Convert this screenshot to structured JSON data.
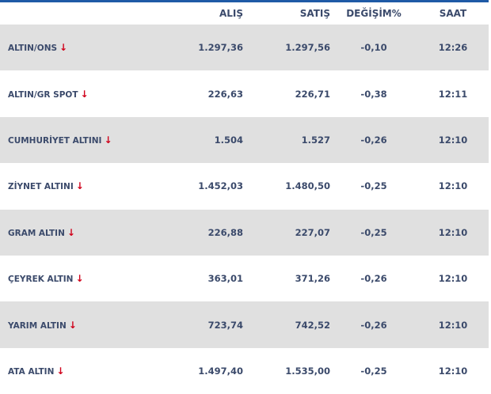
{
  "header": {
    "name": "",
    "buy": "ALIŞ",
    "sell": "SATIŞ",
    "change": "DEĞİŞİM%",
    "time": "SAAT"
  },
  "trend_color": "#d0021b",
  "rows": [
    {
      "name": "ALTIN/ONS",
      "buy": "1.297,36",
      "sell": "1.297,56",
      "change": "-0,10",
      "time": "12:26",
      "trend": "down"
    },
    {
      "name": "ALTIN/GR SPOT",
      "buy": "226,63",
      "sell": "226,71",
      "change": "-0,38",
      "time": "12:11",
      "trend": "down"
    },
    {
      "name": "CUMHURİYET ALTINI",
      "buy": "1.504",
      "sell": "1.527",
      "change": "-0,26",
      "time": "12:10",
      "trend": "down"
    },
    {
      "name": "ZİYNET ALTINI",
      "buy": "1.452,03",
      "sell": "1.480,50",
      "change": "-0,25",
      "time": "12:10",
      "trend": "down"
    },
    {
      "name": "GRAM ALTIN",
      "buy": "226,88",
      "sell": "227,07",
      "change": "-0,25",
      "time": "12:10",
      "trend": "down"
    },
    {
      "name": "ÇEYREK ALTIN",
      "buy": "363,01",
      "sell": "371,26",
      "change": "-0,26",
      "time": "12:10",
      "trend": "down"
    },
    {
      "name": "YARIM ALTIN",
      "buy": "723,74",
      "sell": "742,52",
      "change": "-0,26",
      "time": "12:10",
      "trend": "down"
    },
    {
      "name": "ATA ALTIN",
      "buy": "1.497,40",
      "sell": "1.535,00",
      "change": "-0,25",
      "time": "12:10",
      "trend": "down"
    }
  ]
}
